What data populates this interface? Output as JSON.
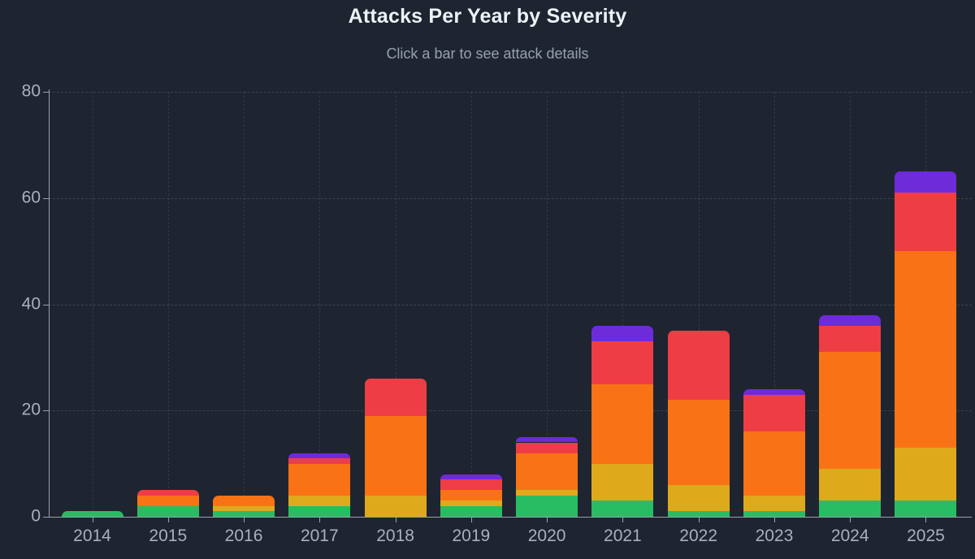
{
  "header": {
    "title": "Attacks Per Year by Severity",
    "subtitle": "Click a bar to see attack details"
  },
  "colors": {
    "background": "#1e2530",
    "title_text": "#eef2f8",
    "subtitle_text": "#97a0ab",
    "axis_text": "#a9b0bc",
    "axis_line": "#9aa2af",
    "segment_green": "#28bd62",
    "segment_yellow": "#dfa91c",
    "segment_orange": "#f97316",
    "segment_red": "#ee3d44",
    "segment_purple": "#6d2bd9"
  },
  "chart_data": {
    "type": "bar",
    "stacked": true,
    "title": "Attacks Per Year by Severity",
    "subtitle": "Click a bar to see attack details",
    "xlabel": "",
    "ylabel": "",
    "ylim": [
      0,
      80
    ],
    "yticks": [
      0,
      20,
      40,
      60,
      80
    ],
    "grid": "dashed horizontal and vertical",
    "legend": "none",
    "categories": [
      "2014",
      "2015",
      "2016",
      "2017",
      "2018",
      "2019",
      "2020",
      "2021",
      "2022",
      "2023",
      "2024",
      "2025"
    ],
    "series": [
      {
        "name": "green",
        "color": "#28bd62",
        "values": [
          1,
          2,
          1,
          2,
          0,
          2,
          4,
          3,
          1,
          1,
          3,
          3
        ]
      },
      {
        "name": "yellow",
        "color": "#dfa91c",
        "values": [
          0,
          0,
          1,
          2,
          4,
          1,
          1,
          7,
          5,
          3,
          6,
          10
        ]
      },
      {
        "name": "orange",
        "color": "#f97316",
        "values": [
          0,
          2,
          2,
          6,
          15,
          2,
          7,
          15,
          16,
          12,
          22,
          37
        ]
      },
      {
        "name": "red",
        "color": "#ee3d44",
        "values": [
          0,
          1,
          0,
          1,
          7,
          2,
          2,
          8,
          13,
          7,
          5,
          11
        ]
      },
      {
        "name": "purple",
        "color": "#6d2bd9",
        "values": [
          0,
          0,
          0,
          1,
          0,
          1,
          1,
          3,
          0,
          1,
          2,
          4
        ]
      }
    ],
    "totals": [
      1,
      5,
      4,
      12,
      26,
      8,
      15,
      36,
      35,
      24,
      38,
      65
    ]
  }
}
